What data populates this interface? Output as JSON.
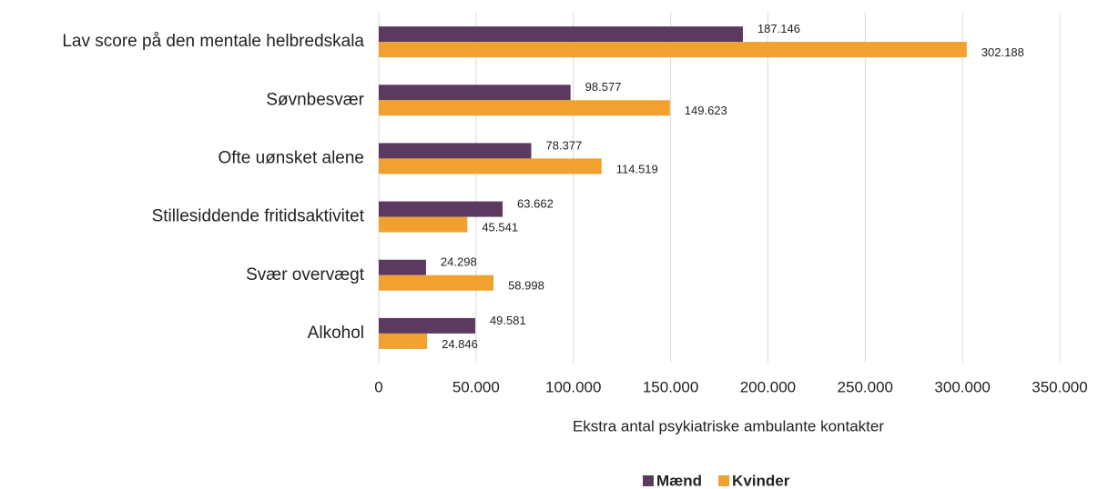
{
  "chart_data": {
    "type": "bar",
    "orientation": "horizontal",
    "categories": [
      "Lav score på den mentale helbredskala",
      "Søvnbesvær",
      "Ofte uønsket alene",
      "Stillesiddende fritidsaktivitet",
      "Svær overvægt",
      "Alkohol"
    ],
    "series": [
      {
        "name": "Mænd",
        "color": "#5c3a5f",
        "values": [
          187146,
          98577,
          78377,
          63662,
          24298,
          49581
        ],
        "value_labels": [
          "187.146",
          "98.577",
          "78.377",
          "63.662",
          "24.298",
          "49.581"
        ]
      },
      {
        "name": "Kvinder",
        "color": "#f0a130",
        "values": [
          302188,
          149623,
          114519,
          45541,
          58998,
          24846
        ],
        "value_labels": [
          "302.188",
          "149.623",
          "114.519",
          "45.541",
          "58.998",
          "24.846"
        ]
      }
    ],
    "xlabel": "Ekstra antal psykiatriske ambulante kontakter",
    "xlim": [
      0,
      350000
    ],
    "xticks": [
      0,
      {
        "value": 50000,
        "label": "50.000"
      },
      {
        "value": 100000,
        "label": "100.000"
      },
      {
        "value": 150000,
        "label": "150.000"
      },
      {
        "value": 200000,
        "label": "200.000"
      },
      {
        "value": 250000,
        "label": "250.000"
      },
      {
        "value": 300000,
        "label": "300.000"
      },
      {
        "value": 350000,
        "label": "350.000"
      }
    ],
    "grid": true,
    "legend": "bottom"
  }
}
